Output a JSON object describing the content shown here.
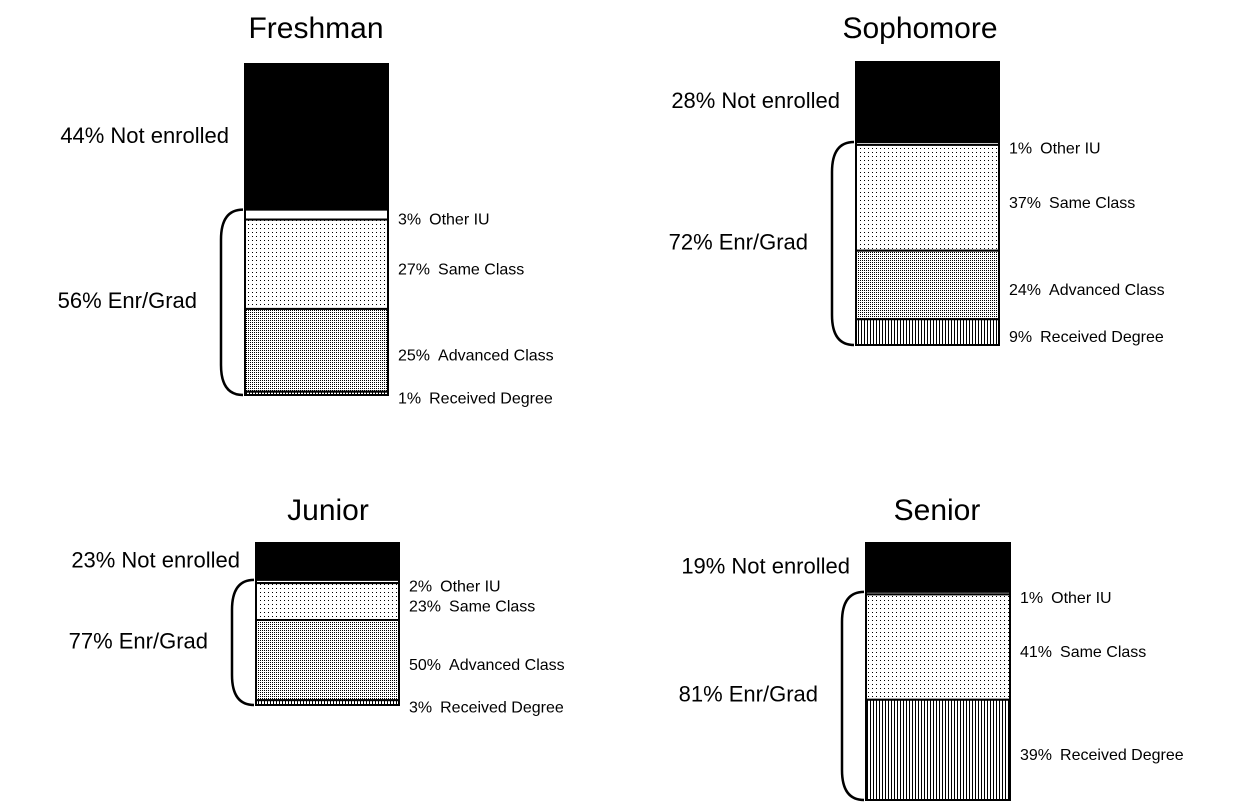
{
  "chart_data": [
    {
      "type": "bar",
      "title": "Freshman",
      "series": [
        {
          "name": "Not enrolled",
          "pattern": "solid",
          "values": [
            44
          ],
          "value_labels": [
            "44%"
          ]
        },
        {
          "name": "Other IU",
          "pattern": "none",
          "values": [
            3
          ],
          "value_labels": [
            "3%"
          ]
        },
        {
          "name": "Same Class",
          "pattern": "sparse-dots",
          "values": [
            27
          ],
          "value_labels": [
            "27%"
          ]
        },
        {
          "name": "Advanced Class",
          "pattern": "dense-dots",
          "values": [
            25
          ],
          "value_labels": [
            "25%"
          ]
        },
        {
          "name": "Received Degree",
          "pattern": "vertical-lines",
          "values": [
            1
          ],
          "value_labels": [
            "1%"
          ]
        }
      ],
      "brace": {
        "value": 56,
        "label": "56% Enr/Grad"
      }
    },
    {
      "type": "bar",
      "title": "Sophomore",
      "series": [
        {
          "name": "Not enrolled",
          "pattern": "solid",
          "values": [
            28
          ],
          "value_labels": [
            "28%"
          ]
        },
        {
          "name": "Other IU",
          "pattern": "none",
          "values": [
            1
          ],
          "value_labels": [
            "1%"
          ]
        },
        {
          "name": "Same Class",
          "pattern": "sparse-dots",
          "values": [
            37
          ],
          "value_labels": [
            "37%"
          ]
        },
        {
          "name": "Advanced Class",
          "pattern": "dense-dots",
          "values": [
            24
          ],
          "value_labels": [
            "24%"
          ]
        },
        {
          "name": "Received Degree",
          "pattern": "vertical-lines",
          "values": [
            9
          ],
          "value_labels": [
            "9%"
          ]
        }
      ],
      "brace": {
        "value": 72,
        "label": "72% Enr/Grad"
      }
    },
    {
      "type": "bar",
      "title": "Junior",
      "series": [
        {
          "name": "Not enrolled",
          "pattern": "solid",
          "values": [
            23
          ],
          "value_labels": [
            "23%"
          ]
        },
        {
          "name": "Other IU",
          "pattern": "none",
          "values": [
            2
          ],
          "value_labels": [
            "2%"
          ]
        },
        {
          "name": "Same Class",
          "pattern": "sparse-dots",
          "values": [
            23
          ],
          "value_labels": [
            "23%"
          ]
        },
        {
          "name": "Advanced Class",
          "pattern": "dense-dots",
          "values": [
            50
          ],
          "value_labels": [
            "50%"
          ]
        },
        {
          "name": "Received Degree",
          "pattern": "vertical-lines",
          "values": [
            3
          ],
          "value_labels": [
            "3%"
          ]
        }
      ],
      "brace": {
        "value": 77,
        "label": "77% Enr/Grad"
      }
    },
    {
      "type": "bar",
      "title": "Senior",
      "series": [
        {
          "name": "Not enrolled",
          "pattern": "solid",
          "values": [
            19
          ],
          "value_labels": [
            "19%"
          ]
        },
        {
          "name": "Other IU",
          "pattern": "none",
          "values": [
            1
          ],
          "value_labels": [
            "1%"
          ]
        },
        {
          "name": "Same Class",
          "pattern": "sparse-dots",
          "values": [
            41
          ],
          "value_labels": [
            "41%"
          ]
        },
        {
          "name": "Received Degree",
          "pattern": "vertical-lines",
          "values": [
            39
          ],
          "value_labels": [
            "39%"
          ]
        }
      ],
      "brace": {
        "value": 81,
        "label": "81% Enr/Grad"
      }
    }
  ]
}
